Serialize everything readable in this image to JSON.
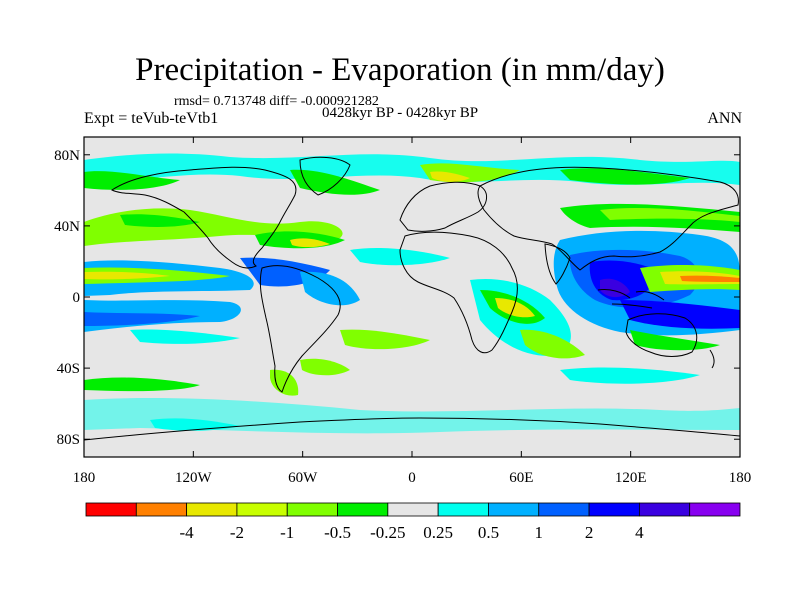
{
  "figure": {
    "title": "Precipitation - Evaporation (in mm/day)",
    "stats_line": "rmsd= 0.713748 diff= -0.000921282",
    "period_line": "0428kyr BP - 0428kyr BP",
    "left_header": "Expt = teVub-teVtb1",
    "right_header": "ANN"
  },
  "axes": {
    "x_ticks": [
      "180",
      "120W",
      "60W",
      "0",
      "60E",
      "120E",
      "180"
    ],
    "y_ticks": [
      "80N",
      "40N",
      "0",
      "40S",
      "80S"
    ],
    "x_range_deg": [
      -180,
      180
    ],
    "y_range_deg": [
      -90,
      90
    ]
  },
  "colorbar": {
    "colors": [
      "#ff0000",
      "#ff8000",
      "#e8e800",
      "#c8ff00",
      "#80ff00",
      "#00ee00",
      "#e6e6e6",
      "#00ffee",
      "#00b0ff",
      "#0060ff",
      "#0000ff",
      "#3a00e0",
      "#8800f0"
    ],
    "labels": [
      "-4",
      "-2",
      "-1",
      "-0.5",
      "-0.25",
      "0.25",
      "0.5",
      "1",
      "2",
      "4"
    ]
  },
  "colors": {
    "land_ocean_background": "#e6e6e6",
    "coastline": "#000000"
  }
}
